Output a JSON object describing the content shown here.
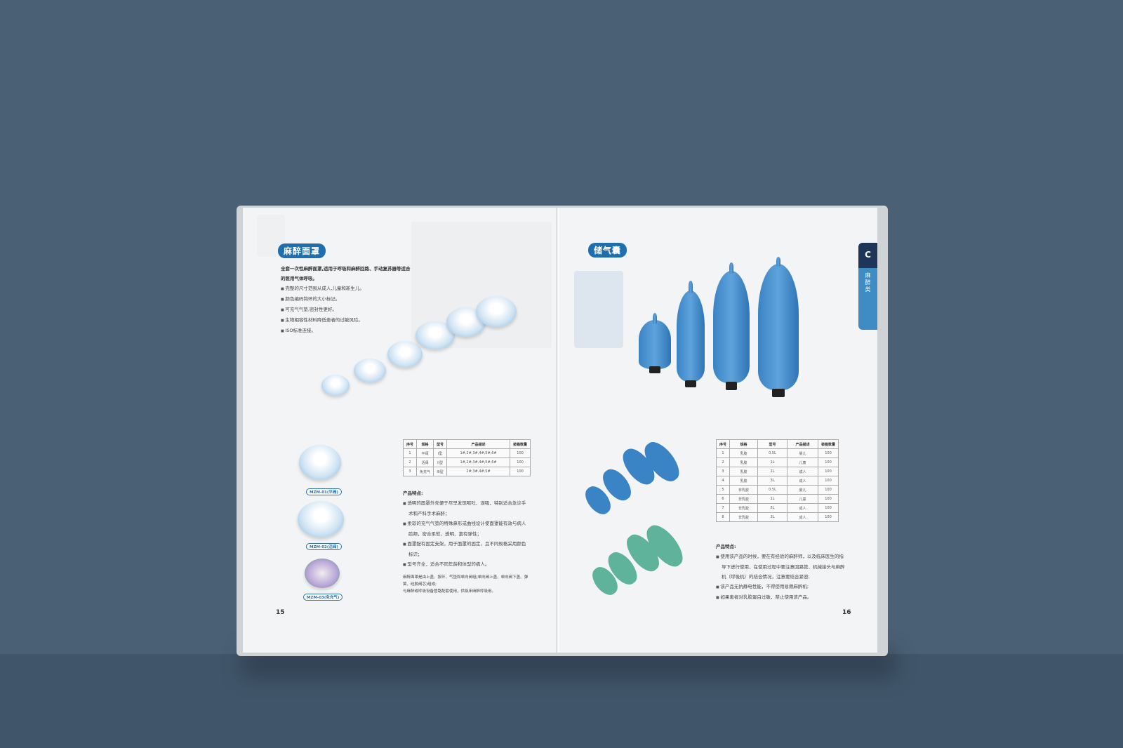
{
  "left_page": {
    "title": "麻醉面罩",
    "intro": [
      "全套一次性麻醉面罩,适用于呼吸和麻醉回路、手动复苏器等适合",
      "的医用气体呼吸。"
    ],
    "bullets": [
      "完整的尺寸范围从成人,儿童和新生儿。",
      "颜色编码钩环的大小标记。",
      "可充气气垫,密封性更好。",
      "生物相容性材料降低患者的过敏风险。",
      "ISO标准连接。"
    ],
    "table": {
      "headers": [
        "序号",
        "规格",
        "型号",
        "产品描述",
        "装箱数量"
      ],
      "rows": [
        [
          "1",
          "平阀",
          "I型",
          "1#,2#,3#,4#,5#,6#",
          "100"
        ],
        [
          "2",
          "活阀",
          "II型",
          "1#,2#,3#,4#,5#,6#",
          "100"
        ],
        [
          "3",
          "免充气",
          "III型",
          "2#,3#,4#,5#",
          "100"
        ]
      ]
    },
    "features_title": "产品特点:",
    "features": [
      [
        "透明的面罩外壳便于尽早发现呕吐、误吸，特别适合急诊手",
        "术和产科手术麻醉；"
      ],
      [
        "柔软的充气气垫的特殊鼻形或曲线设计使面罩能有效与病人",
        "脸颊，密合柔软、透明、富有弹性；"
      ],
      [
        "面罩配有固定支架，用于面罩的固定，且不同规格采用颜色",
        "标识；"
      ],
      [
        "型号齐全，适合不同年龄和体型的病人。"
      ]
    ],
    "note": [
      "麻醉面罩是由上盖、按环、气垫和单向阀组(单向阀上盖、单向阀下盖、弹",
      "簧、硅胶阀芯)组成;",
      "与麻醉或呼吸设备管路配套使用，供临床麻醉呼吸用。"
    ],
    "models": [
      "MZM-01(平阀)",
      "MZM-02(活阀)",
      "MZM-03(免充气)"
    ],
    "page_number": "15"
  },
  "right_page": {
    "title": "储气囊",
    "tab_letter": "C",
    "tab_label": "麻醉类",
    "table": {
      "headers": [
        "序号",
        "规格",
        "型号",
        "产品描述",
        "装箱数量"
      ],
      "rows": [
        [
          "1",
          "乳胶",
          "0.5L",
          "婴儿",
          "100"
        ],
        [
          "2",
          "乳胶",
          "1L",
          "儿童",
          "100"
        ],
        [
          "3",
          "乳胶",
          "2L",
          "成人",
          "100"
        ],
        [
          "4",
          "乳胶",
          "3L",
          "成人",
          "100"
        ],
        [
          "5",
          "非乳胶",
          "0.5L",
          "婴儿",
          "100"
        ],
        [
          "6",
          "非乳胶",
          "1L",
          "儿童",
          "100"
        ],
        [
          "7",
          "非乳胶",
          "2L",
          "成人",
          "100"
        ],
        [
          "8",
          "非乳胶",
          "3L",
          "成人",
          "100"
        ]
      ]
    },
    "features_title": "产品特点:",
    "features": [
      [
        "使用该产品的时候，要在有经验的麻醉师，以及临床医生的指",
        "导下进行使用，在使用过程中要注意回路管、机械接头与麻醉",
        "机（呼吸机）的结合情况，注意要结合紧密;"
      ],
      [
        "该产品无抗静电性能，不得使用易燃麻醉机;"
      ],
      [
        "如果患者对乳胶蛋白过敏，禁止使用该产品。"
      ]
    ],
    "page_number": "16"
  },
  "colors": {
    "accent": "#1f6fae",
    "tab_dark": "#1e3557",
    "background": "#4a6075",
    "bag_blue": "#3a83c4",
    "bag_green": "#5fb39a"
  }
}
